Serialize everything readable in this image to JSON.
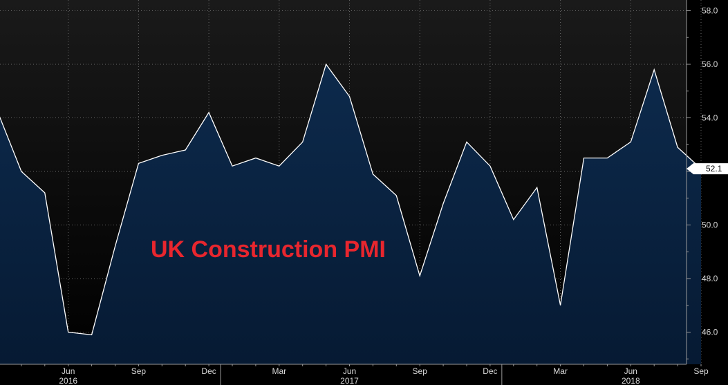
{
  "chart_data": {
    "type": "area",
    "title": "UK Construction PMI",
    "xlabel": "",
    "ylabel": "",
    "ylim": [
      44.8,
      58.4
    ],
    "yticks": [
      "46.0",
      "48.0",
      "50.0",
      "52.0",
      "54.0",
      "56.0",
      "58.0"
    ],
    "last_value_label": "52.1",
    "x_month_ticks": [
      "Jun",
      "Sep",
      "Dec",
      "Mar",
      "Jun",
      "Sep",
      "Dec",
      "Mar",
      "Jun",
      "Sep"
    ],
    "x_year_ticks": [
      "2016",
      "2017",
      "2018"
    ],
    "x": [
      "2016-03",
      "2016-04",
      "2016-05",
      "2016-06",
      "2016-07",
      "2016-08",
      "2016-09",
      "2016-10",
      "2016-11",
      "2016-12",
      "2017-01",
      "2017-02",
      "2017-03",
      "2017-04",
      "2017-05",
      "2017-06",
      "2017-07",
      "2017-08",
      "2017-09",
      "2017-10",
      "2017-11",
      "2017-12",
      "2018-01",
      "2018-02",
      "2018-03",
      "2018-04",
      "2018-05",
      "2018-06",
      "2018-07",
      "2018-08",
      "2018-09"
    ],
    "series": [
      {
        "values": [
          54.2,
          52.0,
          51.2,
          46.0,
          45.9,
          49.2,
          52.3,
          52.6,
          52.8,
          54.2,
          52.2,
          52.5,
          52.2,
          53.1,
          56.0,
          54.8,
          51.9,
          51.1,
          48.1,
          50.8,
          53.1,
          52.2,
          50.2,
          51.4,
          47.0,
          52.5,
          52.5,
          53.1,
          55.8,
          52.9,
          52.1
        ]
      }
    ],
    "colors": {
      "background": "#000000",
      "line": "#ffffff",
      "fill_top": "#0d2a4c",
      "fill_bottom": "#061a33",
      "title": "#e8262e",
      "grid": "#6a6a6a"
    },
    "grid": true
  }
}
